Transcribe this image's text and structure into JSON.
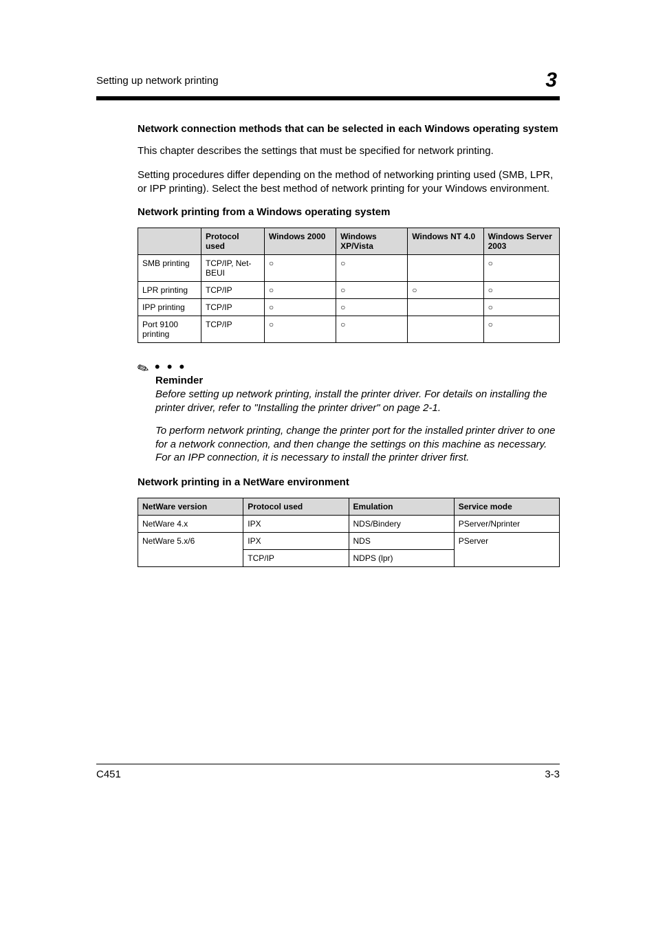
{
  "header": {
    "section_title": "Setting up network printing",
    "chapter_number": "3"
  },
  "subheading1": "Network connection methods that can be selected in each Windows operating system",
  "para1": "This chapter describes the settings that must be specified for network printing.",
  "para2": "Setting procedures differ depending on the method of networking printing used (SMB, LPR, or IPP printing). Select the best method of network printing for your Windows environment.",
  "subheading2": "Network printing from a Windows operating system",
  "table1": {
    "headers": [
      "",
      "Protocol used",
      "Windows 2000",
      "Windows XP/Vista",
      "Windows NT 4.0",
      "Windows Server 2003"
    ],
    "rows": [
      [
        "SMB printing",
        "TCP/IP, Net-BEUI",
        "○",
        "○",
        "",
        "○"
      ],
      [
        "LPR printing",
        "TCP/IP",
        "○",
        "○",
        "○",
        "○"
      ],
      [
        "IPP printing",
        "TCP/IP",
        "○",
        "○",
        "",
        "○"
      ],
      [
        "Port 9100 printing",
        "TCP/IP",
        "○",
        "○",
        "",
        "○"
      ]
    ]
  },
  "reminder": {
    "label": "Reminder",
    "body1": "Before setting up network printing, install the printer driver. For details on installing the printer driver, refer to \"Installing the printer driver\" on page 2-1.",
    "body2": "To perform network printing, change the printer port for the installed printer driver to one for a network connection, and then change the settings on this machine as necessary.",
    "body3": "For an IPP connection, it is necessary to install the printer driver first."
  },
  "subheading3": "Network printing in a NetWare environment",
  "table2": {
    "headers": [
      "NetWare version",
      "Protocol used",
      "Emulation",
      "Service mode"
    ],
    "rows": [
      [
        "NetWare 4.x",
        "IPX",
        "NDS/Bindery",
        "PServer/Nprinter"
      ],
      [
        "NetWare 5.x/6",
        "IPX",
        "NDS",
        "PServer"
      ],
      [
        "",
        "TCP/IP",
        "NDPS (lpr)",
        ""
      ]
    ],
    "rowspans": {
      "r2c0": true,
      "r2c3": true
    }
  },
  "footer": {
    "left": "C451",
    "right": "3-3"
  }
}
